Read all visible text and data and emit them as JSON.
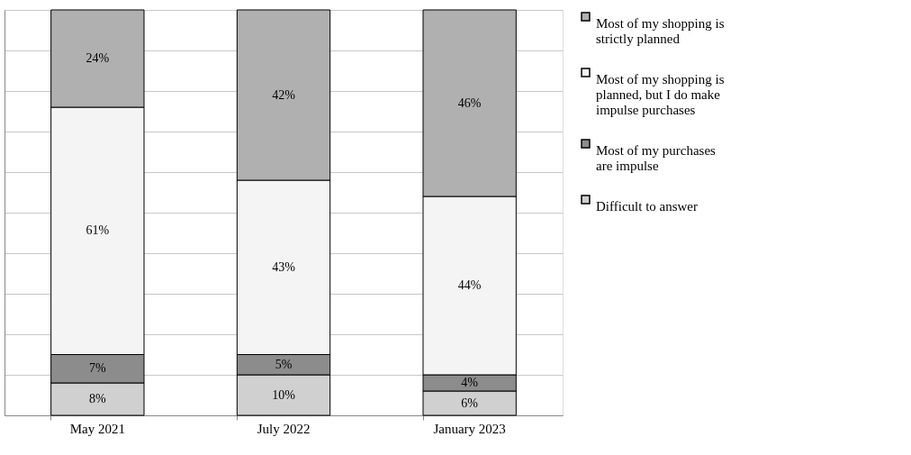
{
  "chart_data": {
    "type": "bar",
    "stacked": true,
    "categories": [
      "May 2021",
      "July 2022",
      "January 2023"
    ],
    "series": [
      {
        "name": "Difficult to answer",
        "color": "#d0d0d0",
        "values": [
          8,
          10,
          6
        ],
        "value_labels": [
          "8%",
          "10%",
          "6%"
        ]
      },
      {
        "name": "Most of my purchases are impulse",
        "color": "#8c8c8c",
        "values": [
          7,
          5,
          4
        ],
        "value_labels": [
          "7%",
          "5%",
          "4%"
        ]
      },
      {
        "name": "Most of my shopping is planned, but I do make impulse purchases",
        "color": "#f4f4f4",
        "values": [
          61,
          43,
          44
        ],
        "value_labels": [
          "61%",
          "43%",
          "44%"
        ]
      },
      {
        "name": "Most of my shopping is strictly planned",
        "color": "#b0b0b0",
        "values": [
          24,
          42,
          46
        ],
        "value_labels": [
          "24%",
          "42%",
          "46%"
        ]
      }
    ],
    "tick_labels": "x",
    "grid": true,
    "legend": "right"
  }
}
